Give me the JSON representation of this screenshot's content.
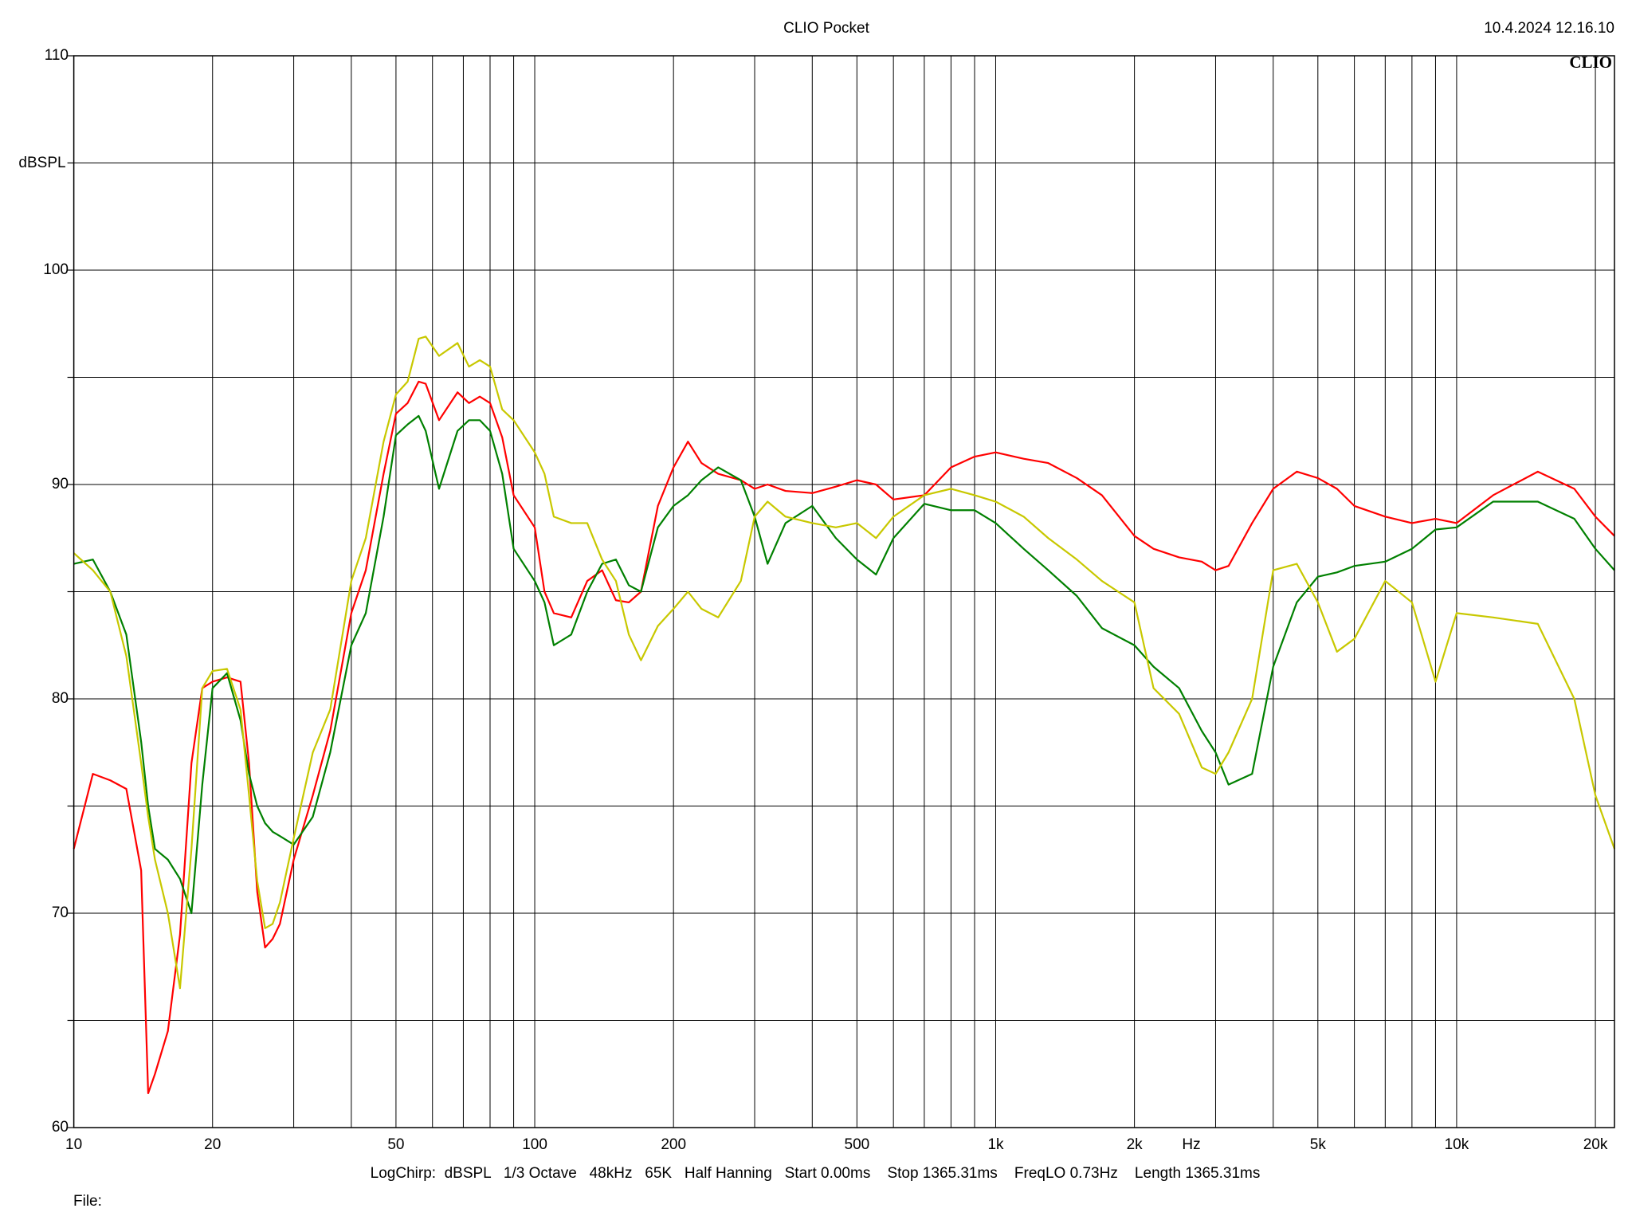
{
  "chart_data": {
    "type": "line",
    "title": "CLIO Pocket",
    "timestamp": "10.4.2024 12.16.10",
    "logo": "CLIO",
    "ylabel": "dBSPL",
    "xlabel": "Hz",
    "footer": "LogChirp:  dBSPL   1/3 Octave   48kHz   65K   Half Hanning   Start 0.00ms    Stop 1365.31ms    FreqLO 0.73Hz    Length 1365.31ms",
    "file_label": "File:",
    "xscale": "log",
    "grid": true,
    "xlim": [
      10,
      22000
    ],
    "ylim": [
      60,
      110
    ],
    "xticks": [
      10,
      20,
      50,
      100,
      200,
      500,
      {
        "value": 1000,
        "label": "1k"
      },
      {
        "value": 2000,
        "label": "2k"
      },
      {
        "value": 5000,
        "label": "5k"
      },
      {
        "value": 10000,
        "label": "10k"
      },
      {
        "value": 20000,
        "label": "20k"
      }
    ],
    "xminorticks": [
      30,
      40,
      60,
      70,
      80,
      90,
      300,
      400,
      600,
      700,
      800,
      900,
      3000,
      4000,
      6000,
      7000,
      8000,
      9000
    ],
    "yticks": [
      60,
      70,
      80,
      90,
      100,
      110
    ],
    "yminorticks": [
      65,
      75,
      85,
      95,
      105
    ],
    "x": [
      10,
      11,
      12,
      13,
      14,
      14.5,
      15,
      16,
      17,
      18,
      19,
      20,
      21.5,
      23,
      24,
      25,
      26,
      27,
      28,
      30,
      33,
      36,
      40,
      43,
      47,
      50,
      53,
      56,
      58,
      62,
      68,
      72,
      76,
      80,
      85,
      90,
      100,
      105,
      110,
      120,
      130,
      140,
      150,
      160,
      170,
      185,
      200,
      215,
      230,
      250,
      280,
      300,
      320,
      350,
      400,
      450,
      500,
      550,
      600,
      700,
      800,
      900,
      1000,
      1150,
      1300,
      1500,
      1700,
      2000,
      2200,
      2500,
      2800,
      3000,
      3200,
      3600,
      4000,
      4500,
      5000,
      5500,
      6000,
      7000,
      8000,
      9000,
      10000,
      12000,
      15000,
      18000,
      20000,
      22000
    ],
    "series": [
      {
        "color": "#ff0000",
        "values": [
          73,
          76.5,
          76.2,
          75.8,
          72,
          61.6,
          62.5,
          64.5,
          69,
          77,
          80.5,
          80.8,
          81,
          80.8,
          77,
          71,
          68.4,
          68.8,
          69.5,
          72.5,
          75.5,
          78.5,
          84,
          86,
          90.5,
          93.3,
          93.8,
          94.8,
          94.7,
          93,
          94.3,
          93.8,
          94.1,
          93.8,
          92.2,
          89.5,
          88,
          85,
          84,
          83.8,
          85.5,
          86,
          84.6,
          84.5,
          85,
          89,
          90.8,
          92,
          91,
          90.5,
          90.2,
          89.8,
          90,
          89.7,
          89.6,
          89.9,
          90.2,
          90,
          89.3,
          89.5,
          90.8,
          91.3,
          91.5,
          91.2,
          91,
          90.3,
          89.5,
          87.6,
          87,
          86.6,
          86.4,
          86,
          86.2,
          88.2,
          89.8,
          90.6,
          90.3,
          89.8,
          89,
          88.5,
          88.2,
          88.4,
          88.2,
          89.5,
          90.6,
          89.8,
          88.5,
          87.6
        ]
      },
      {
        "color": "#008000",
        "values": [
          86.3,
          86.5,
          85,
          83,
          78,
          75,
          73,
          72.5,
          71.6,
          70,
          76,
          80.5,
          81.2,
          79,
          76.5,
          75,
          74.2,
          73.8,
          73.6,
          73.2,
          74.5,
          77.5,
          82.5,
          84,
          88.5,
          92.3,
          92.8,
          93.2,
          92.5,
          89.8,
          92.5,
          93,
          93,
          92.5,
          90.5,
          87,
          85.5,
          84.5,
          82.5,
          83,
          85,
          86.3,
          86.5,
          85.3,
          85,
          88,
          89,
          89.5,
          90.2,
          90.8,
          90.2,
          88.5,
          86.3,
          88.2,
          89,
          87.5,
          86.5,
          85.8,
          87.5,
          89.1,
          88.8,
          88.8,
          88.2,
          87,
          86,
          84.8,
          83.3,
          82.5,
          81.5,
          80.5,
          78.5,
          77.5,
          76,
          76.5,
          81.5,
          84.5,
          85.7,
          85.9,
          86.2,
          86.4,
          87,
          87.9,
          88,
          89.2,
          89.2,
          88.4,
          87,
          86
        ]
      },
      {
        "color": "#c8c800",
        "values": [
          86.8,
          86,
          85,
          82,
          77,
          74.5,
          72.5,
          70,
          66.5,
          73,
          80.5,
          81.3,
          81.4,
          79.5,
          75.5,
          71.5,
          69.3,
          69.5,
          70.5,
          73.5,
          77.5,
          79.5,
          85.5,
          87.5,
          92,
          94.2,
          94.8,
          96.8,
          96.9,
          96,
          96.6,
          95.5,
          95.8,
          95.5,
          93.5,
          93,
          91.5,
          90.5,
          88.5,
          88.2,
          88.2,
          86.5,
          85.5,
          83,
          81.8,
          83.4,
          84.2,
          85,
          84.2,
          83.8,
          85.5,
          88.5,
          89.2,
          88.5,
          88.2,
          88,
          88.2,
          87.5,
          88.5,
          89.5,
          89.8,
          89.5,
          89.2,
          88.5,
          87.5,
          86.5,
          85.5,
          84.5,
          80.5,
          79.3,
          76.8,
          76.5,
          77.5,
          80,
          86,
          86.3,
          84.5,
          82.2,
          82.8,
          85.5,
          84.5,
          80.8,
          84,
          83.8,
          83.5,
          80,
          75.5,
          73
        ]
      }
    ]
  }
}
